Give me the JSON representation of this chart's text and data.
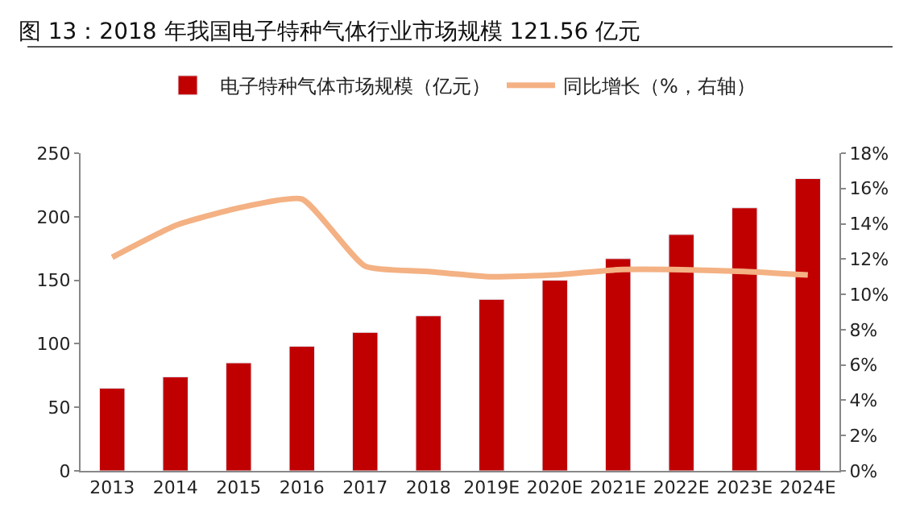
{
  "chart_data": {
    "type": "bar",
    "title": "图 13：2018 年我国电子特种气体行业市场规模 121.56 亿元",
    "categories": [
      "2013",
      "2014",
      "2015",
      "2016",
      "2017",
      "2018",
      "2019E",
      "2020E",
      "2021E",
      "2022E",
      "2023E",
      "2024E"
    ],
    "series": [
      {
        "name": "电子特种气体市场规模（亿元）",
        "color": "#c00000",
        "values": [
          65,
          74,
          85,
          98,
          109,
          122,
          135,
          150,
          167,
          186,
          207,
          230
        ]
      },
      {
        "name": "同比增长（%，右轴）",
        "color": "#f4b183",
        "type": "line",
        "axis": "y2",
        "values": [
          12.1,
          13.9,
          14.9,
          15.4,
          11.6,
          11.3,
          11.0,
          11.1,
          11.4,
          11.4,
          11.3,
          11.1
        ]
      }
    ],
    "ylim": [
      0,
      250
    ],
    "yticks": [
      0,
      50,
      100,
      150,
      200,
      250
    ],
    "y2lim": [
      0,
      18
    ],
    "y2ticks": [
      {
        "value": 0,
        "label": "0%"
      },
      {
        "value": 2,
        "label": "2%"
      },
      {
        "value": 4,
        "label": "4%"
      },
      {
        "value": 6,
        "label": "6%"
      },
      {
        "value": 8,
        "label": "8%"
      },
      {
        "value": 10,
        "label": "10%"
      },
      {
        "value": 12,
        "label": "12%"
      },
      {
        "value": 14,
        "label": "14%"
      },
      {
        "value": 16,
        "label": "16%"
      },
      {
        "value": 18,
        "label": "18%"
      }
    ],
    "legend": "top",
    "marker": "none",
    "line_style": "solid"
  }
}
